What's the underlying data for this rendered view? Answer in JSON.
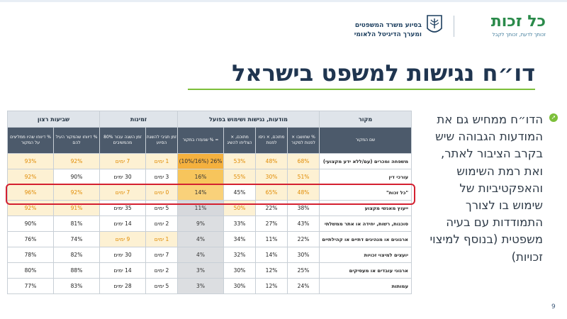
{
  "header": {
    "logo_name": "כל זכות",
    "logo_tagline": "זכותך לדעת, זכותך לקבל",
    "partner_line1": "בסיוע משרד המשפטים",
    "partner_line2": "ומערך הדיגיטל הלאומי"
  },
  "title": "דו״ח נגישות למשפט בישראל",
  "table": {
    "groups": {
      "source": "מקור",
      "awareness": "מודעות, נגישות ושימוש בפועל",
      "availability": "זמינות",
      "satisfaction": "שביעות רצון"
    },
    "columns": {
      "source_name": "שם המקור",
      "c1": "% שחושבו × לפנות למקור",
      "c2": "מתוכם, × ניסו לפנות",
      "c3": "מתוכם, × הצליחו להשיג",
      "c4": "= % שנעזרו במקור",
      "c5": "זמן תגיבי להשגת הסיוע",
      "c6": "זמן השגה עבור 80% מהמשיבים",
      "c7": "% דיווחו שהמקור העיל להם",
      "c8": "% דיווחו שהיו ממליצים על המקור"
    },
    "rows": [
      {
        "source": "משפחה ומכרים (עם/ללא ידע מקצועי)",
        "c1": "68%",
        "c2": "48%",
        "c3": "53%",
        "c4": "26% (16%/10%)",
        "c5": "1 ימים",
        "c6": "7 ימים",
        "c7": "92%",
        "c8": "93%"
      },
      {
        "source": "עורכי דין",
        "c1": "51%",
        "c2": "30%",
        "c3": "55%",
        "c4": "16%",
        "c5": "3 ימים",
        "c6": "30 ימים",
        "c7": "90%",
        "c8": "92%"
      },
      {
        "source": "\"כל זכות\"",
        "c1": "48%",
        "c2": "65%",
        "c3": "45%",
        "c4": "14%",
        "c5": "0 ימים",
        "c6": "7 ימים",
        "c7": "92%",
        "c8": "96%"
      },
      {
        "source": "ייעוץ מאנשי מקצוע",
        "c1": "38%",
        "c2": "22%",
        "c3": "50%",
        "c4": "11%",
        "c5": "5 ימים",
        "c6": "35 ימים",
        "c7": "91%",
        "c8": "92%"
      },
      {
        "source": "סוכנות, רשות, יחידה או אתר ממשלתי",
        "c1": "43%",
        "c2": "27%",
        "c3": "33%",
        "c4": "9%",
        "c5": "2 ימים",
        "c6": "14 ימים",
        "c7": "81%",
        "c8": "90%"
      },
      {
        "source": "ארגונים או מנהיגים דתיים או קהילתיים",
        "c1": "22%",
        "c2": "11%",
        "c3": "34%",
        "c4": "4%",
        "c5": "1 ימים",
        "c6": "9 ימים",
        "c7": "74%",
        "c8": "76%"
      },
      {
        "source": "יועצים למיצוי זכויות",
        "c1": "30%",
        "c2": "14%",
        "c3": "32%",
        "c4": "4%",
        "c5": "7 ימים",
        "c6": "30 ימים",
        "c7": "82%",
        "c8": "78%"
      },
      {
        "source": "ארגוני עובדים או מעסיקים",
        "c1": "25%",
        "c2": "12%",
        "c3": "30%",
        "c4": "3%",
        "c5": "2 ימים",
        "c6": "14 ימים",
        "c7": "88%",
        "c8": "80%"
      },
      {
        "source": "עמותות",
        "c1": "24%",
        "c2": "12%",
        "c3": "30%",
        "c4": "3%",
        "c5": "5 ימים",
        "c6": "28 ימים",
        "c7": "83%",
        "c8": "77%"
      }
    ]
  },
  "bullet_text": "הדו״ח ממחיש גם את המודעות הגבוהה שיש בקרב הציבור לאתר, ואת רמת השימוש והאפקטיביות של שימוש בו לצורך התמודדות עם בעיה משפטית (בנוסף למיצוי זכויות)",
  "page_number": "9",
  "colors": {
    "accent_green": "#7cbf3a",
    "title_navy": "#1f3550",
    "highlight_red": "#d42030",
    "orange": "#e08a00"
  }
}
